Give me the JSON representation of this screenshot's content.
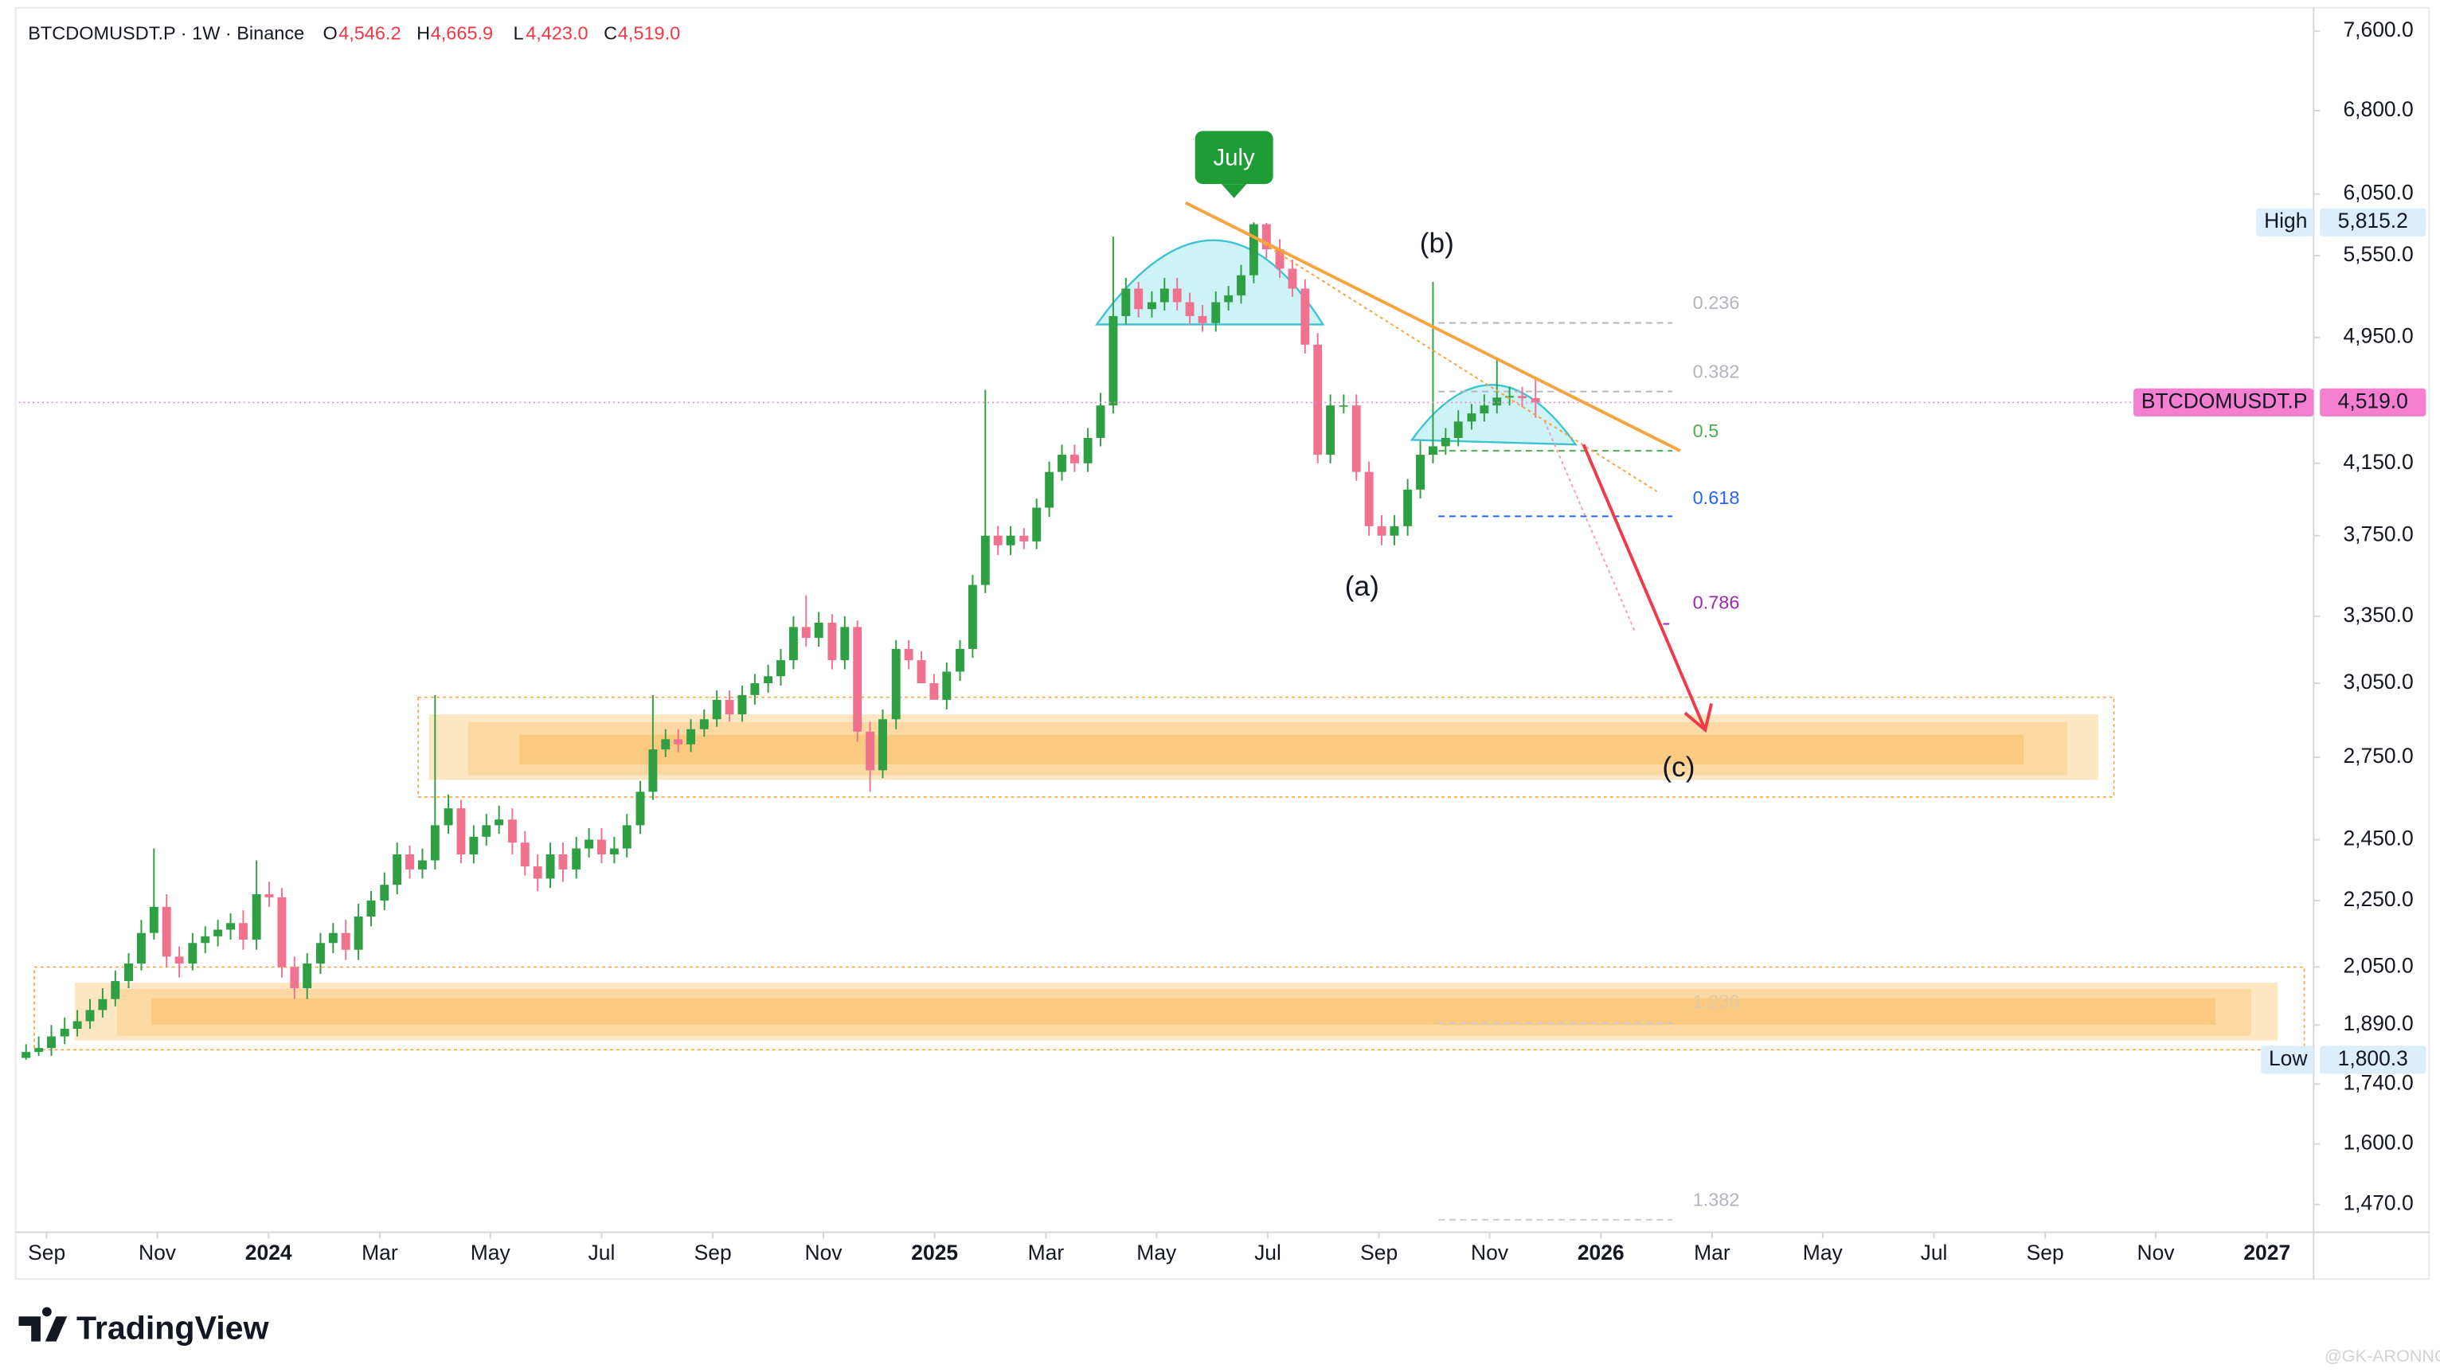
{
  "chart_data": {
    "type": "candlestick",
    "header": {
      "symbol": "BTCDOMUSDT.P · 1W · Binance",
      "ohlc": [
        {
          "key": "O",
          "text": "4,546.2"
        },
        {
          "key": "H",
          "text": "4,665.9"
        },
        {
          "key": "L",
          "text": "4,423.0"
        },
        {
          "key": "C",
          "text": "4,519.0"
        }
      ]
    },
    "log_scale": true,
    "grid": false,
    "xlim": [
      2023.625,
      2027.07
    ],
    "xticks": [
      {
        "value": 2023.667,
        "label": "Sep"
      },
      {
        "value": 2023.833,
        "label": "Nov"
      },
      2024,
      {
        "value": 2024.167,
        "label": "Mar"
      },
      {
        "value": 2024.333,
        "label": "May"
      },
      {
        "value": 2024.5,
        "label": "Jul"
      },
      {
        "value": 2024.667,
        "label": "Sep"
      },
      {
        "value": 2024.833,
        "label": "Nov"
      },
      2025,
      {
        "value": 2025.167,
        "label": "Mar"
      },
      {
        "value": 2025.333,
        "label": "May"
      },
      {
        "value": 2025.5,
        "label": "Jul"
      },
      {
        "value": 2025.667,
        "label": "Sep"
      },
      {
        "value": 2025.833,
        "label": "Nov"
      },
      2026,
      {
        "value": 2026.167,
        "label": "Mar"
      },
      {
        "value": 2026.333,
        "label": "May"
      },
      {
        "value": 2026.5,
        "label": "Jul"
      },
      {
        "value": 2026.667,
        "label": "Sep"
      },
      {
        "value": 2026.833,
        "label": "Nov"
      },
      2027
    ],
    "ylim": [
      1414,
      7853
    ],
    "yticks": [
      {
        "value": 1470,
        "label": "1,470.0"
      },
      {
        "value": 1600,
        "label": "1,600.0"
      },
      {
        "value": 1740,
        "label": "1,740.0"
      },
      {
        "value": 1890,
        "label": "1,890.0"
      },
      {
        "value": 2050,
        "label": "2,050.0"
      },
      {
        "value": 2250,
        "label": "2,250.0"
      },
      {
        "value": 2450,
        "label": "2,450.0"
      },
      {
        "value": 2750,
        "label": "2,750.0"
      },
      {
        "value": 3050,
        "label": "3,050.0"
      },
      {
        "value": 3350,
        "label": "3,350.0"
      },
      {
        "value": 3750,
        "label": "3,750.0"
      },
      {
        "value": 4150,
        "label": "4,150.0"
      },
      {
        "value": 4950,
        "label": "4,950.0"
      },
      {
        "value": 5550,
        "label": "5,550.0"
      },
      {
        "value": 6050,
        "label": "6,050.0"
      },
      {
        "value": 6800,
        "label": "6,800.0"
      },
      {
        "value": 7600,
        "label": "7,600.0"
      }
    ],
    "price_tags": [
      {
        "label": "High",
        "value": 5815.2,
        "text": "5,815.2"
      },
      {
        "label": "BTCDOMUSDT.P",
        "value": 4519,
        "text": "4,519.0",
        "price_line": true
      },
      {
        "label": "Low",
        "value": 1800.3,
        "text": "1,800.3"
      }
    ],
    "annotations": [
      "July",
      "(b)",
      "(a)",
      "(c)"
    ],
    "fib_labels": [
      0.236,
      0.382,
      0.5,
      0.618,
      0.786,
      1.236,
      1.382
    ],
    "series": [
      {
        "up_color": "#2ea043",
        "down_color": "#f0728f",
        "x": [
          2023.636,
          2023.655,
          2023.674,
          2023.694,
          2023.713,
          2023.732,
          2023.751,
          2023.77,
          2023.79,
          2023.809,
          2023.828,
          2023.847,
          2023.866,
          2023.886,
          2023.905,
          2023.924,
          2023.943,
          2023.962,
          2023.982,
          2024.001,
          2024.02,
          2024.039,
          2024.058,
          2024.078,
          2024.097,
          2024.116,
          2024.135,
          2024.154,
          2024.174,
          2024.193,
          2024.212,
          2024.231,
          2024.25,
          2024.27,
          2024.289,
          2024.308,
          2024.327,
          2024.346,
          2024.366,
          2024.385,
          2024.404,
          2024.423,
          2024.442,
          2024.462,
          2024.481,
          2024.5,
          2024.519,
          2024.538,
          2024.558,
          2024.577,
          2024.596,
          2024.615,
          2024.634,
          2024.654,
          2024.673,
          2024.692,
          2024.711,
          2024.73,
          2024.75,
          2024.769,
          2024.788,
          2024.807,
          2024.826,
          2024.846,
          2024.865,
          2024.884,
          2024.903,
          2024.922,
          2024.942,
          2024.961,
          2024.98,
          2024.999,
          2025.018,
          2025.038,
          2025.057,
          2025.076,
          2025.095,
          2025.114,
          2025.134,
          2025.153,
          2025.172,
          2025.191,
          2025.21,
          2025.23,
          2025.249,
          2025.268,
          2025.287,
          2025.306,
          2025.326,
          2025.345,
          2025.364,
          2025.383,
          2025.402,
          2025.422,
          2025.441,
          2025.46,
          2025.479,
          2025.498,
          2025.518,
          2025.537,
          2025.556,
          2025.575,
          2025.594,
          2025.614,
          2025.633,
          2025.652,
          2025.671,
          2025.69,
          2025.71,
          2025.729,
          2025.748,
          2025.767,
          2025.786,
          2025.806,
          2025.825,
          2025.844,
          2025.863,
          2025.882,
          2025.902
        ],
        "open": [
          1805,
          1820,
          1830,
          1860,
          1880,
          1900,
          1930,
          1960,
          2010,
          2060,
          2150,
          2230,
          2080,
          2060,
          2120,
          2140,
          2160,
          2180,
          2130,
          2270,
          2260,
          2050,
          1990,
          2060,
          2120,
          2150,
          2100,
          2200,
          2250,
          2300,
          2400,
          2350,
          2380,
          2500,
          2560,
          2400,
          2460,
          2500,
          2520,
          2440,
          2360,
          2320,
          2400,
          2350,
          2420,
          2450,
          2400,
          2420,
          2500,
          2620,
          2780,
          2820,
          2800,
          2860,
          2900,
          2980,
          2920,
          3000,
          3050,
          3080,
          3150,
          3300,
          3250,
          3320,
          3150,
          3300,
          2850,
          2700,
          2900,
          3200,
          3150,
          3050,
          2980,
          3100,
          3200,
          3500,
          3750,
          3700,
          3750,
          3720,
          3900,
          4100,
          4200,
          4150,
          4300,
          4500,
          5100,
          5300,
          5150,
          5200,
          5300,
          5200,
          5100,
          5050,
          5200,
          5250,
          5400,
          5800,
          5600,
          5450,
          5300,
          4900,
          4200,
          4500,
          4500,
          4100,
          3800,
          3750,
          3800,
          4000,
          4200,
          4250,
          4300,
          4400,
          4450,
          4500,
          4550,
          4560,
          4546.2
        ],
        "high": [
          1840,
          1860,
          1890,
          1910,
          1930,
          1960,
          1990,
          2040,
          2090,
          2190,
          2420,
          2270,
          2110,
          2150,
          2170,
          2190,
          2210,
          2220,
          2380,
          2310,
          2290,
          2080,
          2090,
          2150,
          2180,
          2190,
          2240,
          2280,
          2340,
          2440,
          2430,
          2420,
          3000,
          2610,
          2590,
          2500,
          2540,
          2570,
          2560,
          2480,
          2400,
          2440,
          2440,
          2460,
          2490,
          2490,
          2460,
          2540,
          2660,
          3000,
          2860,
          2860,
          2900,
          2940,
          3020,
          3020,
          3040,
          3090,
          3130,
          3200,
          3350,
          3450,
          3370,
          3360,
          3350,
          3330,
          2890,
          2940,
          3240,
          3240,
          3190,
          3090,
          3140,
          3240,
          3550,
          4600,
          3800,
          3800,
          3790,
          3950,
          4160,
          4260,
          4260,
          4360,
          4580,
          5700,
          5380,
          5350,
          5280,
          5380,
          5380,
          5270,
          5180,
          5280,
          5320,
          5480,
          5815.2,
          5810,
          5680,
          5520,
          5370,
          4980,
          4570,
          4570,
          4570,
          4160,
          3860,
          3860,
          4060,
          4280,
          5350,
          4360,
          4470,
          4510,
          4570,
          4800,
          4620,
          4620,
          4665.9
        ],
        "low": [
          1800.3,
          1810,
          1810,
          1840,
          1860,
          1880,
          1910,
          1940,
          1990,
          2040,
          2130,
          2050,
          2020,
          2040,
          2090,
          2110,
          2130,
          2100,
          2100,
          2230,
          2020,
          1960,
          1960,
          2030,
          2090,
          2070,
          2070,
          2170,
          2220,
          2270,
          2320,
          2320,
          2350,
          2470,
          2370,
          2370,
          2430,
          2470,
          2400,
          2330,
          2280,
          2290,
          2310,
          2320,
          2390,
          2370,
          2370,
          2390,
          2470,
          2590,
          2750,
          2770,
          2770,
          2830,
          2870,
          2890,
          2890,
          2960,
          3010,
          3040,
          3110,
          3210,
          3210,
          3110,
          3110,
          2810,
          2620,
          2670,
          2860,
          3110,
          3110,
          3010,
          2940,
          3060,
          3160,
          3460,
          3650,
          3650,
          3680,
          3680,
          3850,
          4050,
          4100,
          4100,
          4250,
          4450,
          5040,
          5090,
          5090,
          5140,
          5140,
          5040,
          4990,
          4990,
          5140,
          5190,
          5340,
          5530,
          5380,
          5240,
          4840,
          4150,
          4150,
          4450,
          4050,
          3750,
          3700,
          3700,
          3750,
          3950,
          4150,
          4200,
          4250,
          4350,
          4400,
          4450,
          4500,
          4490,
          4423
        ],
        "close": [
          1820,
          1830,
          1860,
          1880,
          1900,
          1930,
          1960,
          2010,
          2060,
          2150,
          2230,
          2080,
          2060,
          2120,
          2140,
          2160,
          2180,
          2130,
          2270,
          2260,
          2050,
          1990,
          2060,
          2120,
          2150,
          2100,
          2200,
          2250,
          2300,
          2400,
          2350,
          2380,
          2500,
          2560,
          2400,
          2460,
          2500,
          2520,
          2440,
          2360,
          2320,
          2400,
          2350,
          2420,
          2450,
          2400,
          2420,
          2500,
          2620,
          2780,
          2820,
          2800,
          2860,
          2900,
          2980,
          2920,
          3000,
          3050,
          3080,
          3150,
          3300,
          3250,
          3320,
          3150,
          3300,
          2850,
          2700,
          2900,
          3200,
          3150,
          3050,
          2980,
          3100,
          3200,
          3500,
          3750,
          3700,
          3750,
          3720,
          3900,
          4100,
          4200,
          4150,
          4300,
          4500,
          5100,
          5300,
          5150,
          5200,
          5300,
          5200,
          5100,
          5050,
          5200,
          5250,
          5400,
          5800,
          5600,
          5450,
          5300,
          4900,
          4200,
          4500,
          4500,
          4100,
          3800,
          3750,
          3800,
          4000,
          4200,
          4250,
          4300,
          4400,
          4450,
          4500,
          4550,
          4560,
          4546.2,
          4519
        ]
      }
    ],
    "branding": {
      "logo": "TradingView",
      "watermark": "@GK-ARONNO"
    }
  }
}
